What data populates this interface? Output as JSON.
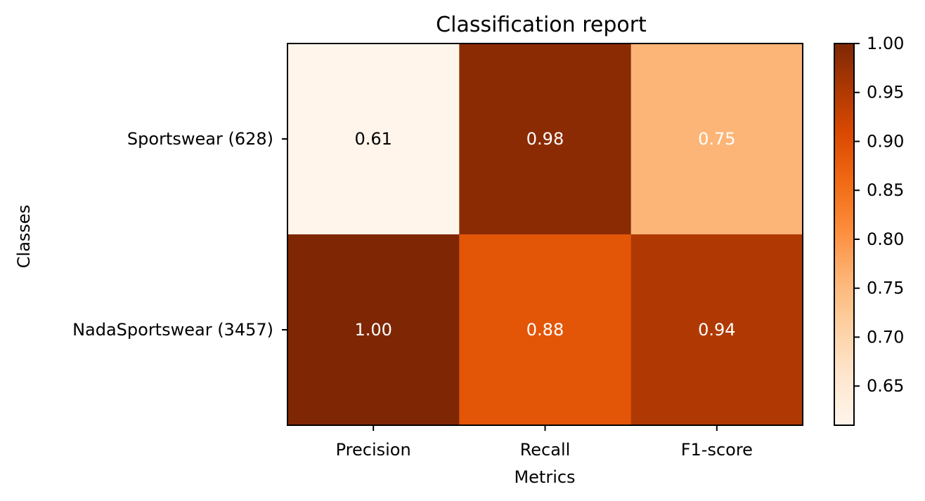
{
  "chart_data": {
    "type": "heatmap",
    "title": "Classification report",
    "xlabel": "Metrics",
    "ylabel": "Classes",
    "x_categories": [
      "Precision",
      "Recall",
      "F1-score"
    ],
    "y_categories": [
      "Sportswear (628)",
      "NadaSportswear (3457)"
    ],
    "values": [
      [
        0.61,
        0.98,
        0.75
      ],
      [
        1.0,
        0.88,
        0.94
      ]
    ],
    "cell_labels": [
      [
        "0.61",
        "0.98",
        "0.75"
      ],
      [
        "1.00",
        "0.88",
        "0.94"
      ]
    ],
    "colormap": "Oranges",
    "colorbar": {
      "range": [
        0.61,
        1.0
      ],
      "ticks": [
        0.65,
        0.7,
        0.75,
        0.8,
        0.85,
        0.9,
        0.95,
        1.0
      ],
      "tick_labels": [
        "0.65",
        "0.70",
        "0.75",
        "0.80",
        "0.85",
        "0.90",
        "0.95",
        "1.00"
      ]
    },
    "colors": {
      "cell_colors": [
        [
          "#fff5eb",
          "#8b2b04",
          "#fdb577"
        ],
        [
          "#7f2704",
          "#e35608",
          "#b03903"
        ]
      ],
      "label_colors": [
        [
          "#000000",
          "#ffffff",
          "#ffffff"
        ],
        [
          "#ffffff",
          "#ffffff",
          "#ffffff"
        ]
      ]
    }
  }
}
